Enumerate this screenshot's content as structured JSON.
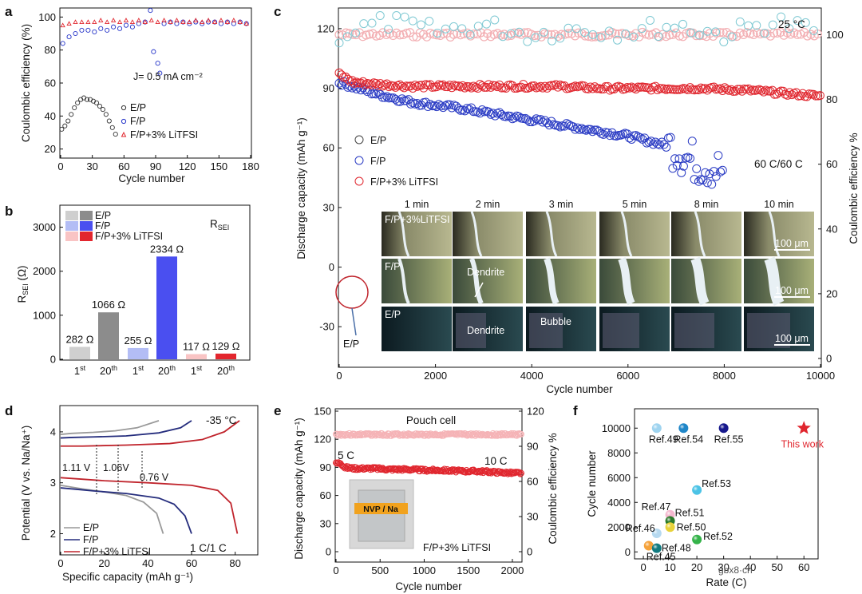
{
  "panels": {
    "a": {
      "label": "a",
      "xlabel": "Cycle number",
      "ylabel": "Coulombic efficiency (%)",
      "xticks": [
        "0",
        "30",
        "60",
        "90",
        "120",
        "150",
        "180"
      ],
      "yticks": [
        "20",
        "40",
        "60",
        "80",
        "100"
      ],
      "annotation": "J= 0.5 mA cm⁻²",
      "legend": [
        "E/P",
        "F/P",
        "F/P+3% LiTFSI"
      ]
    },
    "b": {
      "label": "b",
      "ylabel": "R",
      "ylabel_sub": "SEI",
      "ylabel_unit": " (Ω)",
      "title": "R",
      "title_sub": "SEI",
      "yticks": [
        "0",
        "1000",
        "2000",
        "3000"
      ],
      "legend": [
        "E/P",
        "F/P",
        "F/P+3% LiTFSI"
      ]
    },
    "c": {
      "label": "c",
      "xlabel": "Cycle number",
      "ylabel_left": "Discharge capacity (mAh g⁻¹)",
      "ylabel_right": "Coulombic efficiency %",
      "xticks": [
        "0",
        "2000",
        "4000",
        "6000",
        "8000",
        "10000"
      ],
      "yticks_left": [
        "-30",
        "0",
        "30",
        "60",
        "90",
        "120"
      ],
      "yticks_right": [
        "0",
        "20",
        "40",
        "60",
        "80",
        "100"
      ],
      "temp": "25 °C",
      "rate": "60 C/60 C",
      "legend": [
        "E/P",
        "F/P",
        "F/P+3% LiTFSI"
      ],
      "times": [
        "1 min",
        "2 min",
        "3 min",
        "5 min",
        "8 min",
        "10 min"
      ],
      "rows": [
        "F/P+3%LiTFSI",
        "F/P",
        "E/P"
      ],
      "dendrite": "Dendrite",
      "bubble": "Bubble",
      "scalebar": "100 μm",
      "callout": "E/P"
    },
    "d": {
      "label": "d",
      "xlabel": "Specific capacity (mAh g⁻¹)",
      "ylabel": "Potential (V vs. Na/Na⁺)",
      "xticks": [
        "0",
        "20",
        "40",
        "60",
        "80"
      ],
      "yticks": [
        "2",
        "3",
        "4"
      ],
      "temp": "-35 °C",
      "rate": "1 C/1 C",
      "gaps": [
        "1.11 V",
        "1.06V",
        "0.76 V"
      ],
      "legend": [
        "E/P",
        "F/P",
        "F/P+3% LiTFSI"
      ]
    },
    "e": {
      "label": "e",
      "xlabel": "Cycle number",
      "ylabel_left": "Discharge capacity (mAh g⁻¹)",
      "ylabel_right": "Coulombic efficiency %",
      "xticks": [
        "0",
        "500",
        "1000",
        "1500",
        "2000"
      ],
      "yticks_left": [
        "0",
        "30",
        "60",
        "90",
        "120",
        "150"
      ],
      "yticks_right": [
        "0",
        "30",
        "60",
        "90",
        "120"
      ],
      "title": "Pouch cell",
      "rate_start": "5 C",
      "rate_end": "10 C",
      "inset": "NVP / Na",
      "legend": "F/P+3% LiTFSI"
    },
    "f": {
      "label": "f",
      "xlabel": "Rate (C)",
      "ylabel": "Cycle number",
      "xticks": [
        "0",
        "10",
        "20",
        "30",
        "40",
        "50",
        "60"
      ],
      "yticks": [
        "0",
        "2000",
        "4000",
        "6000",
        "8000",
        "10000"
      ],
      "this_work": "This work"
    }
  },
  "watermark": "gbx8·cn",
  "chart_data": [
    {
      "panel": "a",
      "type": "scatter",
      "title": "",
      "xlabel": "Cycle number",
      "ylabel": "Coulombic efficiency (%)",
      "xlim": [
        0,
        180
      ],
      "ylim": [
        15,
        105
      ],
      "series": [
        {
          "name": "E/P",
          "color": "#333333",
          "x": [
            1,
            4,
            7,
            10,
            13,
            16,
            19,
            22,
            25,
            28,
            31,
            34,
            37,
            40,
            43,
            46,
            49,
            52
          ],
          "y": [
            32,
            34,
            37,
            41,
            45,
            48,
            50,
            51,
            50,
            50,
            49,
            48,
            46,
            44,
            41,
            37,
            33,
            29
          ]
        },
        {
          "name": "F/P",
          "color": "#2433c9",
          "x": [
            2,
            8,
            14,
            20,
            26,
            32,
            38,
            44,
            50,
            56,
            62,
            68,
            74,
            80,
            85,
            88,
            92,
            94,
            98,
            104,
            110,
            116,
            122,
            128,
            134,
            140,
            146,
            152,
            158,
            164,
            170,
            176
          ],
          "y": [
            84,
            88,
            90,
            92,
            92,
            91,
            93,
            92,
            94,
            93,
            95,
            94,
            96,
            97,
            104,
            79,
            72,
            66,
            96,
            97,
            96,
            97,
            96,
            97,
            96,
            97,
            97,
            96,
            97,
            96,
            97,
            96
          ]
        },
        {
          "name": "F/P+3% LiTFSI",
          "color": "#e0262e",
          "x": [
            2,
            8,
            14,
            20,
            26,
            32,
            38,
            44,
            50,
            56,
            62,
            68,
            74,
            80,
            86,
            92,
            98,
            104,
            110,
            116,
            122,
            128,
            134,
            140,
            146,
            152,
            158,
            164,
            170,
            176
          ],
          "y": [
            95,
            96,
            97,
            97,
            97,
            97,
            98,
            97,
            98,
            97,
            98,
            97,
            98,
            97,
            98,
            97,
            98,
            97,
            98,
            97,
            97,
            98,
            97,
            98,
            97,
            98,
            97,
            98,
            97,
            96
          ]
        }
      ]
    },
    {
      "panel": "b",
      "type": "bar",
      "title": "R_SEI",
      "categories": [
        "E/P 1st",
        "E/P 20th",
        "F/P 1st",
        "F/P 20th",
        "F/P+3% LiTFSI 1st",
        "F/P+3% LiTFSI 20th"
      ],
      "tick_labels": [
        "1st",
        "20th",
        "1st",
        "20th",
        "1st",
        "20th"
      ],
      "values": [
        282,
        1066,
        255,
        2334,
        117,
        129
      ],
      "value_labels": [
        "282 Ω",
        "1066 Ω",
        "255 Ω",
        "2334 Ω",
        "117 Ω",
        "129 Ω"
      ],
      "colors": [
        "#cfcfcf",
        "#8c8c8c",
        "#b3bdf5",
        "#4a4ff0",
        "#f9c4c4",
        "#e3262e"
      ],
      "ylim": [
        0,
        3500
      ],
      "ylabel": "R_SEI (Ω)"
    },
    {
      "panel": "c",
      "type": "scatter",
      "xlabel": "Cycle number",
      "ylabel": "Discharge capacity (mAh g-1)",
      "xlim": [
        0,
        10000
      ],
      "ylim": [
        -50,
        130
      ],
      "y2lim": [
        0,
        108
      ],
      "series": [
        {
          "name": "F/P+3% LiTFSI capacity",
          "color": "#e0262e",
          "x": [
            0,
            300,
            800,
            1500,
            2500,
            3500,
            4500,
            5500,
            6500,
            7500,
            8500,
            9500,
            10000
          ],
          "y": [
            97,
            93,
            92,
            91,
            91,
            91,
            91,
            90,
            90,
            90,
            89,
            87,
            86
          ]
        },
        {
          "name": "F/P capacity",
          "color": "#2b3cc4",
          "x": [
            0,
            400,
            800,
            1500,
            2500,
            3500,
            4500,
            5500,
            6000,
            6500,
            7000,
            7200,
            7500,
            7800,
            8000
          ],
          "y": [
            93,
            90,
            87,
            83,
            80,
            76,
            72,
            68,
            66,
            63,
            60,
            55,
            52,
            50,
            48
          ]
        },
        {
          "name": "F/P CE",
          "color": "#f3b0b4",
          "x": [
            0,
            2000,
            4000,
            6000,
            8000,
            10000
          ],
          "y": [
            100,
            100,
            100,
            100,
            100,
            100
          ]
        },
        {
          "name": "F/P+3% LiTFSI CE",
          "color": "#7fc9d3",
          "x": [
            0,
            1000,
            2000,
            3000,
            4000,
            5000,
            6000,
            7000,
            8000,
            9000,
            10000
          ],
          "y": [
            100,
            104,
            101,
            103,
            100,
            102,
            101,
            103,
            100,
            104,
            101
          ]
        }
      ]
    },
    {
      "panel": "d",
      "type": "line",
      "xlabel": "Specific capacity (mAh g-1)",
      "ylabel": "Potential (V vs. Na/Na+)",
      "xlim": [
        0,
        90
      ],
      "ylim": [
        1.6,
        4.5
      ],
      "series": [
        {
          "name": "E/P",
          "color": "#999999",
          "charge_x": [
            0,
            5,
            15,
            25,
            35,
            45
          ],
          "charge_y": [
            3.95,
            3.97,
            3.99,
            4.02,
            4.08,
            4.22
          ],
          "discharge_x": [
            0,
            10,
            20,
            30,
            38,
            44,
            47
          ],
          "discharge_y": [
            2.95,
            2.88,
            2.82,
            2.75,
            2.62,
            2.4,
            2.0
          ]
        },
        {
          "name": "F/P",
          "color": "#252d7d",
          "charge_x": [
            0,
            5,
            15,
            30,
            45,
            55,
            60
          ],
          "charge_y": [
            3.88,
            3.89,
            3.9,
            3.92,
            3.98,
            4.08,
            4.22
          ],
          "discharge_x": [
            0,
            15,
            30,
            45,
            52,
            57,
            60
          ],
          "discharge_y": [
            2.9,
            2.84,
            2.79,
            2.7,
            2.58,
            2.35,
            2.0
          ]
        },
        {
          "name": "F/P+3% LiTFSI",
          "color": "#c0242c",
          "charge_x": [
            0,
            10,
            30,
            50,
            65,
            75,
            82
          ],
          "charge_y": [
            3.72,
            3.72,
            3.74,
            3.77,
            3.85,
            4.0,
            4.22
          ],
          "discharge_x": [
            0,
            20,
            40,
            60,
            72,
            78,
            81
          ],
          "discharge_y": [
            3.1,
            3.04,
            3.0,
            2.95,
            2.85,
            2.6,
            2.0
          ]
        }
      ]
    },
    {
      "panel": "e",
      "type": "scatter",
      "xlabel": "Cycle number",
      "ylabel": "Discharge capacity (mAh g-1)",
      "xlim": [
        0,
        2100
      ],
      "ylim": [
        0,
        150
      ],
      "y2lim": [
        0,
        120
      ],
      "series": [
        {
          "name": "F/P+3% LiTFSI capacity",
          "color": "#e0262e",
          "x": [
            0,
            50,
            100,
            200,
            400,
            600,
            800,
            1000,
            1200,
            1400,
            1600,
            1800,
            2000,
            2100
          ],
          "y": [
            94,
            95,
            90,
            89,
            89,
            88,
            88,
            87,
            87,
            86,
            86,
            85,
            84,
            84
          ]
        },
        {
          "name": "CE",
          "color": "#f5b3b6",
          "x": [
            0,
            500,
            1000,
            1500,
            2000,
            2100
          ],
          "y": [
            100,
            100,
            100,
            100,
            100,
            100
          ]
        }
      ]
    },
    {
      "panel": "f",
      "type": "scatter",
      "xlabel": "Rate (C)",
      "ylabel": "Cycle number",
      "xlim": [
        -3,
        65
      ],
      "ylim": [
        -500,
        11500
      ],
      "points": [
        {
          "name": "Ref.49",
          "x": 5,
          "y": 10000,
          "color": "#9fd4f0"
        },
        {
          "name": "Ref.54",
          "x": 15,
          "y": 10000,
          "color": "#1f86c8"
        },
        {
          "name": "Ref.55",
          "x": 30,
          "y": 10000,
          "color": "#16188c"
        },
        {
          "name": "Ref.53",
          "x": 20,
          "y": 5000,
          "color": "#4cc3e6"
        },
        {
          "name": "Ref.47",
          "x": 10,
          "y": 3000,
          "color": "#f5b8cf"
        },
        {
          "name": "Ref.51",
          "x": 10,
          "y": 2500,
          "color": "#2b7a2b"
        },
        {
          "name": "Ref.50",
          "x": 10,
          "y": 2000,
          "color": "#e8d23a"
        },
        {
          "name": "Ref.46",
          "x": 5,
          "y": 1500,
          "color": "#b6d9f0"
        },
        {
          "name": "Ref.52",
          "x": 20,
          "y": 1000,
          "color": "#35b34a"
        },
        {
          "name": "Ref.45",
          "x": 2,
          "y": 500,
          "color": "#f5a23a"
        },
        {
          "name": "Ref.48",
          "x": 5,
          "y": 300,
          "color": "#127a80"
        },
        {
          "name": "This work",
          "x": 60,
          "y": 10000,
          "color": "#e0262e",
          "marker": "star"
        }
      ]
    }
  ]
}
